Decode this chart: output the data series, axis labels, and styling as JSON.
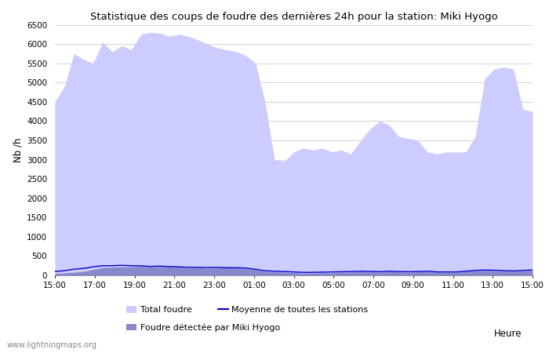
{
  "title": "Statistique des coups de foudre des dernières 24h pour la station: Miki Hyogo",
  "ylabel": "Nb /h",
  "xlabel": "Heure",
  "watermark": "www.lightningmaps.org",
  "ylim": [
    0,
    6500
  ],
  "yticks": [
    0,
    500,
    1000,
    1500,
    2000,
    2500,
    3000,
    3500,
    4000,
    4500,
    5000,
    5500,
    6000,
    6500
  ],
  "x_labels": [
    "15:00",
    "17:00",
    "19:00",
    "21:00",
    "23:00",
    "01:00",
    "03:00",
    "05:00",
    "07:00",
    "09:00",
    "11:00",
    "13:00",
    "15:00"
  ],
  "total_foudre_color": "#ccccff",
  "foudre_miki_color": "#8888cc",
  "moyenne_color": "#0000cc",
  "bg_color": "#ffffff",
  "grid_color": "#cccccc",
  "total_foudre": [
    4500,
    4900,
    5750,
    5600,
    5500,
    6050,
    5800,
    5950,
    5850,
    6250,
    6300,
    6280,
    6200,
    6250,
    6200,
    6100,
    6000,
    5900,
    5850,
    5800,
    5700,
    5500,
    4500,
    3000,
    2950,
    3200,
    3300,
    3250,
    3300,
    3200,
    3250,
    3150,
    3500,
    3800,
    4000,
    3900,
    3600,
    3550,
    3500,
    3200,
    3150,
    3200,
    3200,
    3200,
    3600,
    5100,
    5350,
    5400,
    5350,
    4300,
    4250
  ],
  "foudre_miki": [
    50,
    60,
    80,
    100,
    150,
    200,
    210,
    220,
    225,
    235,
    220,
    225,
    225,
    220,
    190,
    205,
    180,
    195,
    200,
    190,
    175,
    150,
    100,
    90,
    80,
    70,
    60,
    60,
    70,
    65,
    80,
    85,
    100,
    90,
    80,
    100,
    88,
    80,
    90,
    95,
    80,
    78,
    82,
    100,
    118,
    128,
    120,
    110,
    100,
    118,
    128
  ],
  "moyenne": [
    100,
    120,
    160,
    180,
    220,
    250,
    250,
    260,
    250,
    248,
    230,
    238,
    228,
    220,
    208,
    208,
    200,
    208,
    198,
    198,
    188,
    158,
    118,
    108,
    98,
    88,
    78,
    78,
    83,
    88,
    93,
    98,
    108,
    103,
    93,
    108,
    98,
    93,
    98,
    108,
    88,
    88,
    88,
    108,
    128,
    138,
    133,
    123,
    113,
    128,
    138
  ],
  "n_points": 51,
  "legend_total_label": "Total foudre",
  "legend_miki_label": "Foudre détectée par Miki Hyogo",
  "legend_moy_label": "Moyenne de toutes les stations"
}
